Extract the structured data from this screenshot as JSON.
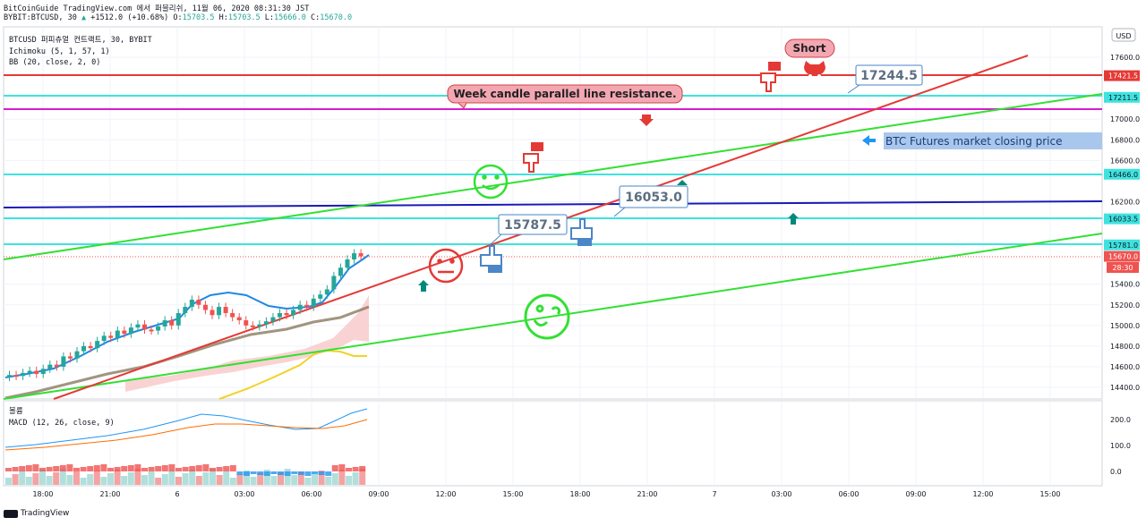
{
  "header": {
    "line1": "BitCoinGuide TradingView.com 에서 퍼블리쉬, 11월 06, 2020 08:31:30 JST",
    "line2_prefix": "BYBIT:BTCUSD, 30",
    "line2_change": "+1512.0 (+10.68%)",
    "ohlc": [
      {
        "label": "O:",
        "value": "15703.5"
      },
      {
        "label": "H:",
        "value": "15703.5"
      },
      {
        "label": "L:",
        "value": "15666.0"
      },
      {
        "label": "C:",
        "value": "15670.0"
      }
    ]
  },
  "legend": {
    "symbol": "BTCUSD 퍼피츄얼 컨트랙트, 30, BYBIT",
    "ichimoku": "Ichimoku (5, 1, 57, 1)",
    "bb": "BB (20, close, 2, 0)",
    "volume": "볼륨",
    "macd": "MACD (12, 26, close, 9)"
  },
  "price_axis": {
    "currency": "USD",
    "ticks": [
      "17600.0",
      "17000.0",
      "16800.0",
      "16600.0",
      "16200.0",
      "15400.0",
      "15200.0",
      "15000.0",
      "14800.0",
      "14600.0",
      "14400.0"
    ],
    "tags": [
      {
        "text": "17421.5",
        "color": "#e53935"
      },
      {
        "text": "17211.5",
        "color": "#3ee3e0"
      },
      {
        "text": "16466.0",
        "color": "#3ee3e0"
      },
      {
        "text": "16033.5",
        "color": "#3ee3e0"
      },
      {
        "text": "15781.0",
        "color": "#3ee3e0"
      },
      {
        "text": "15670.0",
        "color": "#ef5350"
      }
    ],
    "countdown": "28:30"
  },
  "macd_axis": {
    "ticks": [
      "200.0",
      "100.0",
      "0.0"
    ]
  },
  "time_axis": {
    "ticks": [
      "18:00",
      "21:00",
      "6",
      "03:00",
      "06:00",
      "09:00",
      "12:00",
      "15:00",
      "18:00",
      "21:00",
      "7",
      "03:00",
      "06:00",
      "09:00",
      "12:00",
      "15:00"
    ]
  },
  "annotations": {
    "short": "Short",
    "week_resistance": "Week candle parallel line resistance.",
    "price_17244": "17244.5",
    "price_16053": "16053.0",
    "price_15787": "15787.5",
    "closing_price": "BTC Futures market closing price"
  },
  "colors": {
    "up": "#26a69a",
    "down": "#ef5350",
    "red_line": "#e53935",
    "cyan_line": "#3ee3e0",
    "magenta_line": "#d81bd1",
    "blue_line": "#1a1ab8",
    "green_line": "#33e033",
    "bb_band": "#1e88e5",
    "cloud": "#f8c8c8"
  },
  "footer": {
    "brand": "TradingView"
  }
}
